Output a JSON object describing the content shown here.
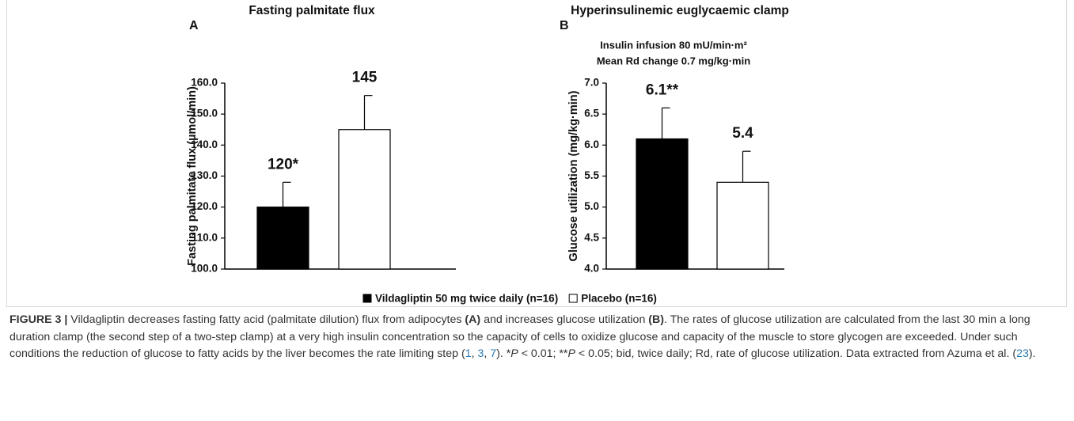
{
  "chart_data": [
    {
      "type": "bar",
      "title": "Fasting palmitate flux",
      "panel": "A",
      "ylabel": "Fasting palmitate flux (µmol/min)",
      "ylim": [
        100,
        160
      ],
      "yticks": [
        {
          "value": 100,
          "label": "100.0"
        },
        {
          "value": 110,
          "label": "110.0"
        },
        {
          "value": 120,
          "label": "120.0"
        },
        {
          "value": 130,
          "label": "130.0"
        },
        {
          "value": 140,
          "label": "140.0"
        },
        {
          "value": 150,
          "label": "150.0"
        },
        {
          "value": 160,
          "label": "160.0"
        }
      ],
      "series": [
        {
          "name": "Vildagliptin 50 mg twice daily (n=16)",
          "color": "#000000",
          "values": [
            120
          ],
          "errors": [
            8
          ],
          "value_labels": [
            "120*"
          ]
        },
        {
          "name": "Placebo (n=16)",
          "color": "#ffffff",
          "values": [
            145
          ],
          "errors": [
            11
          ],
          "value_labels": [
            "145"
          ]
        }
      ]
    },
    {
      "type": "bar",
      "title": "Hyperinsulinemic euglycaemic clamp",
      "panel": "B",
      "subtitle": [
        "Insulin infusion  80 mU/min·m²",
        "Mean Rd change 0.7 mg/kg·min"
      ],
      "ylabel": "Glucose utilization (mg/kg·min)",
      "ylim": [
        4,
        7
      ],
      "yticks": [
        {
          "value": 4,
          "label": "4.0"
        },
        {
          "value": 4.5,
          "label": "4.5"
        },
        {
          "value": 5,
          "label": "5.0"
        },
        {
          "value": 5.5,
          "label": "5.5"
        },
        {
          "value": 6,
          "label": "6.0"
        },
        {
          "value": 6.5,
          "label": "6.5"
        },
        {
          "value": 7,
          "label": "7.0"
        }
      ],
      "series": [
        {
          "color": "#000000",
          "values": [
            6.1
          ],
          "errors": [
            0.5
          ],
          "value_labels": [
            "6.1**"
          ]
        },
        {
          "color": "#ffffff",
          "values": [
            5.4
          ],
          "errors": [
            0.5
          ],
          "value_labels": [
            "5.4"
          ]
        }
      ]
    }
  ],
  "caption": [
    "FIGURE 3 |",
    " Vildagliptin decreases fasting fatty acid (palmitate dilution) flux from adipocytes ",
    "(A)",
    " and increases glucose utilization ",
    "(B)",
    ". The rates of glucose utilization are calculated from the last 30 min a long duration clamp (the second step of a two-step clamp) at a very high insulin concentration so the capacity of cells to oxidize glucose and capacity of the muscle to store glycogen are exceeded. Under such conditions the reduction of glucose to fatty acids by the liver becomes the rate limiting step (",
    "1",
    ", ",
    "3",
    ", ",
    "7",
    "). *",
    "P",
    " < 0.01; **",
    "P",
    " < 0.05; bid, twice daily; Rd, rate of glucose utilization. Data extracted from Azuma et al. (",
    "23",
    ")."
  ]
}
